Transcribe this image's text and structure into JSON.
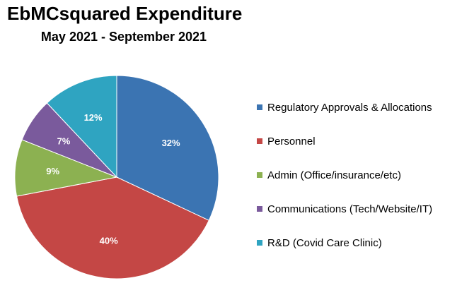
{
  "chart_data": {
    "type": "pie",
    "title": "EbMCsquared Expenditure",
    "subtitle": "May 2021 - September 2021",
    "categories": [
      "Regulatory Approvals & Allocations",
      "Personnel",
      "Admin (Office/insurance/etc)",
      "Communications (Tech/Website/IT)",
      "R&D (Covid Care Clinic)"
    ],
    "values": [
      32,
      40,
      9,
      7,
      12
    ],
    "data_labels": [
      "32%",
      "40%",
      "9%",
      "7%",
      "12%"
    ],
    "colors": [
      "#3b74b2",
      "#c44745",
      "#8cb151",
      "#7a5a9c",
      "#2fa4c1"
    ],
    "legend_position": "right"
  }
}
